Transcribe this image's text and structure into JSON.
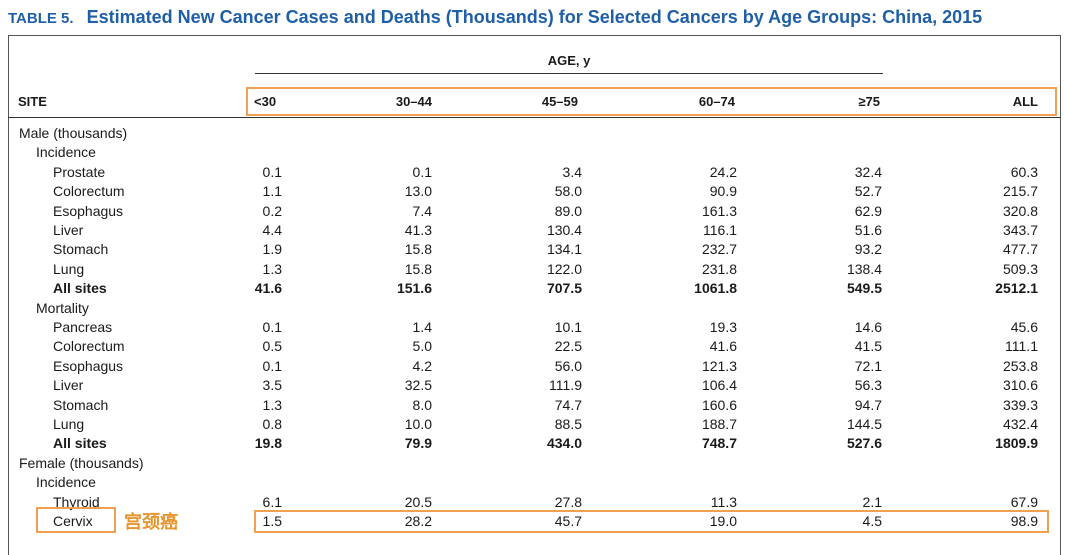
{
  "title": {
    "label": "TABLE 5.",
    "text": "Estimated New Cancer Cases and Deaths (Thousands) for Selected Cancers by Age Groups: China, 2015"
  },
  "table": {
    "age_header": "AGE, y",
    "site_header": "SITE",
    "columns": [
      "<30",
      "30–44",
      "45–59",
      "60–74",
      "≥75",
      "ALL"
    ],
    "rows": [
      {
        "label": "Male (thousands)",
        "level": 0,
        "bold": false,
        "values": []
      },
      {
        "label": "Incidence",
        "level": 1,
        "bold": false,
        "values": []
      },
      {
        "label": "Prostate",
        "level": 2,
        "bold": false,
        "values": [
          "0.1",
          "0.1",
          "3.4",
          "24.2",
          "32.4",
          "60.3"
        ]
      },
      {
        "label": "Colorectum",
        "level": 2,
        "bold": false,
        "values": [
          "1.1",
          "13.0",
          "58.0",
          "90.9",
          "52.7",
          "215.7"
        ]
      },
      {
        "label": "Esophagus",
        "level": 2,
        "bold": false,
        "values": [
          "0.2",
          "7.4",
          "89.0",
          "161.3",
          "62.9",
          "320.8"
        ]
      },
      {
        "label": "Liver",
        "level": 2,
        "bold": false,
        "values": [
          "4.4",
          "41.3",
          "130.4",
          "116.1",
          "51.6",
          "343.7"
        ]
      },
      {
        "label": "Stomach",
        "level": 2,
        "bold": false,
        "values": [
          "1.9",
          "15.8",
          "134.1",
          "232.7",
          "93.2",
          "477.7"
        ]
      },
      {
        "label": "Lung",
        "level": 2,
        "bold": false,
        "values": [
          "1.3",
          "15.8",
          "122.0",
          "231.8",
          "138.4",
          "509.3"
        ]
      },
      {
        "label": "All sites",
        "level": 2,
        "bold": true,
        "values": [
          "41.6",
          "151.6",
          "707.5",
          "1061.8",
          "549.5",
          "2512.1"
        ]
      },
      {
        "label": "Mortality",
        "level": 1,
        "bold": false,
        "values": []
      },
      {
        "label": "Pancreas",
        "level": 2,
        "bold": false,
        "values": [
          "0.1",
          "1.4",
          "10.1",
          "19.3",
          "14.6",
          "45.6"
        ]
      },
      {
        "label": "Colorectum",
        "level": 2,
        "bold": false,
        "values": [
          "0.5",
          "5.0",
          "22.5",
          "41.6",
          "41.5",
          "111.1"
        ]
      },
      {
        "label": "Esophagus",
        "level": 2,
        "bold": false,
        "values": [
          "0.1",
          "4.2",
          "56.0",
          "121.3",
          "72.1",
          "253.8"
        ]
      },
      {
        "label": "Liver",
        "level": 2,
        "bold": false,
        "values": [
          "3.5",
          "32.5",
          "111.9",
          "106.4",
          "56.3",
          "310.6"
        ]
      },
      {
        "label": "Stomach",
        "level": 2,
        "bold": false,
        "values": [
          "1.3",
          "8.0",
          "74.7",
          "160.6",
          "94.7",
          "339.3"
        ]
      },
      {
        "label": "Lung",
        "level": 2,
        "bold": false,
        "values": [
          "0.8",
          "10.0",
          "88.5",
          "188.7",
          "144.5",
          "432.4"
        ]
      },
      {
        "label": "All sites",
        "level": 2,
        "bold": true,
        "values": [
          "19.8",
          "79.9",
          "434.0",
          "748.7",
          "527.6",
          "1809.9"
        ]
      },
      {
        "label": "Female (thousands)",
        "level": 0,
        "bold": false,
        "values": []
      },
      {
        "label": "Incidence",
        "level": 1,
        "bold": false,
        "values": []
      },
      {
        "label": "Thyroid",
        "level": 2,
        "bold": false,
        "values": [
          "6.1",
          "20.5",
          "27.8",
          "11.3",
          "2.1",
          "67.9"
        ]
      },
      {
        "label": "Cervix",
        "level": 2,
        "bold": false,
        "values": [
          "1.5",
          "28.2",
          "45.7",
          "19.0",
          "4.5",
          "98.9"
        ]
      }
    ]
  },
  "annotation": {
    "chinese_label": "宫颈癌",
    "highlight_color": "#f0a050"
  },
  "colors": {
    "title": "#1f5fa8",
    "annotation": "#e8952e"
  }
}
